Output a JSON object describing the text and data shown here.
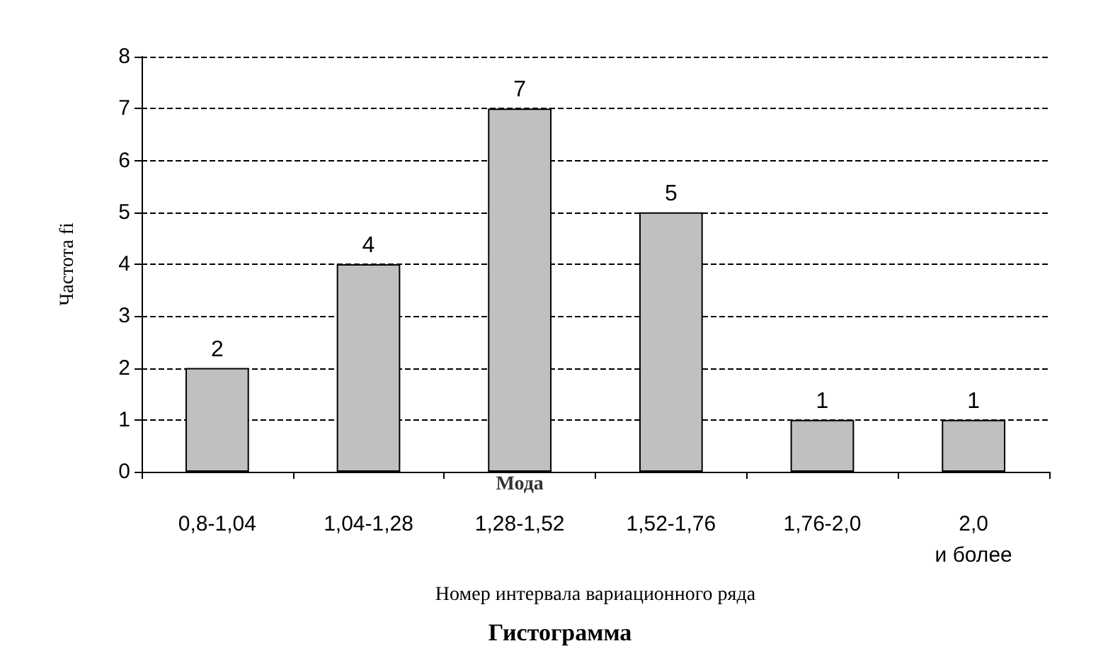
{
  "chart_data": {
    "type": "bar",
    "title": "Гистограмма",
    "xlabel": "Номер интервала вариационного ряда",
    "ylabel": "Частота fi",
    "categories": [
      "0,8-1,04",
      "1,04-1,28",
      "1,28-1,52",
      "1,52-1,76",
      "1,76-2,0",
      "2,0 и более"
    ],
    "series": [
      {
        "color": "#c0c0c0",
        "values": [
          2,
          4,
          7,
          5,
          1,
          1
        ]
      }
    ],
    "ylim": [
      0,
      8
    ],
    "yticks": [
      0,
      1,
      2,
      3,
      4,
      5,
      6,
      7,
      8
    ],
    "grid": "y",
    "data_labels": true,
    "annotations": [
      {
        "text": "Мода",
        "x": "1,28-1,52",
        "y": 0
      }
    ]
  }
}
